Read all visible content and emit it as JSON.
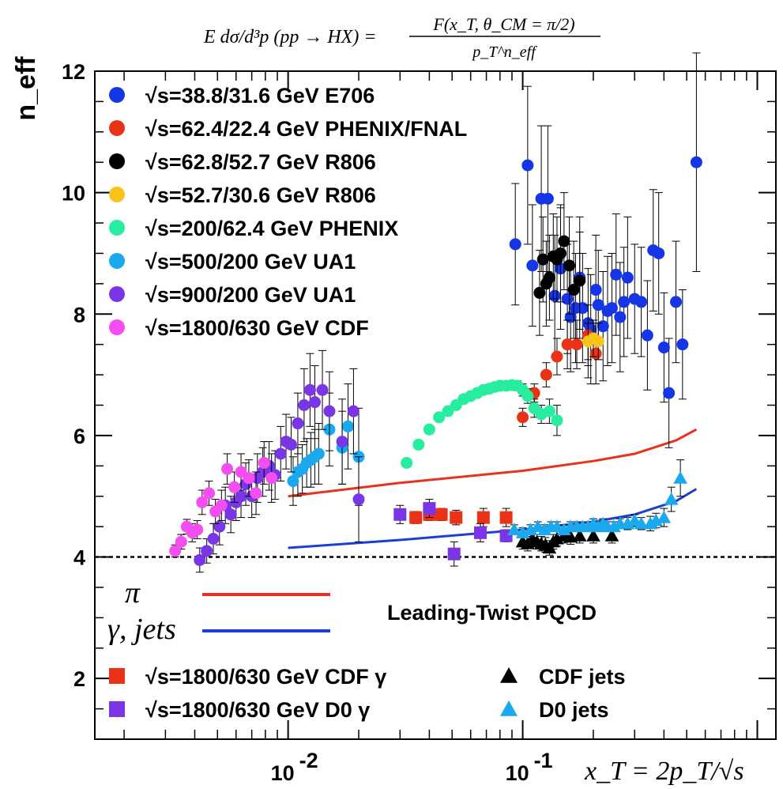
{
  "chart_data": {
    "type": "scatter",
    "title_formula": {
      "lhs": "E dσ/d³p (pp → HX) =",
      "numerator": "F(x_T, θ_CM = π/2)",
      "denominator": "p_T^n_eff"
    },
    "ylabel": "n_eff",
    "xlabel": "x_T = 2p_T/√s",
    "x_scale": "log",
    "xlim": [
      0.0015,
      1.2
    ],
    "ylim": [
      1,
      12
    ],
    "y_ticks": [
      "2",
      "4",
      "6",
      "8",
      "10",
      "12"
    ],
    "x_ticks": [
      {
        "base": "10",
        "exp": "-2",
        "value": 0.01
      },
      {
        "base": "10",
        "exp": "-1",
        "value": 0.1
      }
    ],
    "reference_line": {
      "y": 4,
      "style": "dashed"
    },
    "annotation": "Leading-Twist PQCD",
    "curve_labels": [
      {
        "label": "π",
        "color": "#e8321e"
      },
      {
        "label": "γ, jets",
        "color": "#1b3fd4"
      }
    ],
    "legend_top": [
      {
        "label": "√s=38.8/31.6 GeV E706",
        "color": "#1536e6",
        "marker": "circle"
      },
      {
        "label": "√s=62.4/22.4 GeV PHENIX/FNAL",
        "color": "#ea3316",
        "marker": "circle"
      },
      {
        "label": "√s=62.8/52.7 GeV R806",
        "color": "#000000",
        "marker": "circle"
      },
      {
        "label": "√s=52.7/30.6 GeV R806",
        "color": "#f8c41a",
        "marker": "circle"
      },
      {
        "label": "√s=200/62.4 GeV PHENIX",
        "color": "#27ee9e",
        "marker": "circle"
      },
      {
        "label": "√s=500/200 GeV UA1",
        "color": "#1aa8ee",
        "marker": "circle"
      },
      {
        "label": "√s=900/200 GeV UA1",
        "color": "#7a35e6",
        "marker": "circle"
      },
      {
        "label": "√s=1800/630 GeV CDF",
        "color": "#f44df0",
        "marker": "circle"
      }
    ],
    "legend_bottom": [
      {
        "label": "√s=1800/630 GeV CDF γ",
        "color": "#ea3316",
        "marker": "square"
      },
      {
        "label": "√s=1800/630 GeV D0 γ",
        "color": "#7a35e6",
        "marker": "square"
      },
      {
        "label": "CDF jets",
        "color": "#000000",
        "marker": "triangle"
      },
      {
        "label": "D0 jets",
        "color": "#1aa8ee",
        "marker": "triangle"
      }
    ],
    "curves": [
      {
        "name": "π",
        "color": "#e8321e",
        "x": [
          0.01,
          0.03,
          0.1,
          0.2,
          0.3,
          0.45,
          0.55
        ],
        "y": [
          5.0,
          5.22,
          5.42,
          5.58,
          5.7,
          5.92,
          6.1
        ]
      },
      {
        "name": "γ, jets",
        "color": "#1b3fd4",
        "x": [
          0.01,
          0.03,
          0.1,
          0.2,
          0.3,
          0.45,
          0.55
        ],
        "y": [
          4.15,
          4.28,
          4.45,
          4.58,
          4.7,
          4.92,
          5.12
        ]
      }
    ],
    "series": [
      {
        "name": "√s=38.8/31.6 GeV E706",
        "marker": "circle",
        "color": "#1536e6",
        "x": [
          0.093,
          0.105,
          0.11,
          0.12,
          0.128,
          0.137,
          0.145,
          0.155,
          0.16,
          0.168,
          0.175,
          0.18,
          0.19,
          0.195,
          0.205,
          0.21,
          0.22,
          0.23,
          0.24,
          0.25,
          0.26,
          0.27,
          0.28,
          0.3,
          0.32,
          0.34,
          0.36,
          0.38,
          0.4,
          0.42,
          0.45,
          0.48,
          0.55
        ],
        "y": [
          9.15,
          10.45,
          8.8,
          9.9,
          9.9,
          8.3,
          8.75,
          8.25,
          7.95,
          8.1,
          8.6,
          8.1,
          7.85,
          7.75,
          8.4,
          8.15,
          7.8,
          8.05,
          8.1,
          8.65,
          7.95,
          8.2,
          8.6,
          8.25,
          8.2,
          7.65,
          9.05,
          9.0,
          7.45,
          6.7,
          8.2,
          7.5,
          10.5
        ],
        "yerr": [
          1.0,
          1.3,
          1.0,
          1.2,
          1.2,
          1.0,
          1.0,
          0.9,
          0.9,
          0.9,
          1.0,
          0.9,
          0.9,
          0.9,
          0.9,
          0.9,
          0.9,
          0.9,
          0.9,
          1.0,
          0.9,
          0.9,
          1.0,
          0.9,
          0.9,
          0.9,
          1.0,
          1.0,
          0.9,
          0.9,
          1.0,
          0.9,
          1.8
        ]
      },
      {
        "name": "√s=62.4/22.4 GeV PHENIX/FNAL",
        "marker": "circle",
        "color": "#ea3316",
        "x": [
          0.1,
          0.112,
          0.126,
          0.14,
          0.155,
          0.17,
          0.19,
          0.205
        ],
        "y": [
          6.3,
          6.7,
          7.0,
          7.3,
          7.5,
          7.5,
          7.65,
          7.35
        ],
        "yerr": [
          0.15,
          0.15,
          0.2,
          0.3,
          0.4,
          0.4,
          0.5,
          0.5
        ]
      },
      {
        "name": "√s=62.8/52.7 GeV R806",
        "marker": "circle",
        "color": "#000000",
        "x": [
          0.118,
          0.122,
          0.126,
          0.13,
          0.135,
          0.14,
          0.145,
          0.15,
          0.158,
          0.165,
          0.175
        ],
        "y": [
          8.35,
          8.9,
          8.5,
          8.6,
          8.95,
          8.9,
          9.0,
          9.2,
          8.8,
          8.4,
          8.55
        ],
        "yerr": [
          0.7,
          0.7,
          0.7,
          0.7,
          0.7,
          0.7,
          0.8,
          0.8,
          0.8,
          0.8,
          0.8
        ]
      },
      {
        "name": "√s=52.7/30.6 GeV R806",
        "marker": "circle",
        "color": "#f8c41a",
        "x": [
          0.19,
          0.2,
          0.21
        ],
        "y": [
          7.55,
          7.6,
          7.55
        ],
        "yerr": [
          0.3,
          0.3,
          0.3
        ]
      },
      {
        "name": "√s=200/62.4 GeV PHENIX",
        "marker": "circle",
        "color": "#27ee9e",
        "x": [
          0.032,
          0.036,
          0.04,
          0.044,
          0.048,
          0.052,
          0.056,
          0.06,
          0.064,
          0.068,
          0.072,
          0.076,
          0.08,
          0.085,
          0.09,
          0.095,
          0.1,
          0.105,
          0.112,
          0.12,
          0.13,
          0.14
        ],
        "y": [
          5.55,
          5.85,
          6.1,
          6.3,
          6.4,
          6.5,
          6.6,
          6.65,
          6.7,
          6.75,
          6.77,
          6.8,
          6.82,
          6.82,
          6.83,
          6.82,
          6.75,
          6.65,
          6.45,
          6.35,
          6.4,
          6.25
        ],
        "yerr": [
          0.06,
          0.06,
          0.06,
          0.06,
          0.06,
          0.06,
          0.06,
          0.06,
          0.06,
          0.06,
          0.06,
          0.06,
          0.06,
          0.07,
          0.07,
          0.08,
          0.1,
          0.12,
          0.15,
          0.15,
          0.2,
          0.25
        ]
      },
      {
        "name": "√s=500/200 GeV UA1",
        "marker": "circle",
        "color": "#1aa8ee",
        "x": [
          0.0105,
          0.011,
          0.0115,
          0.012,
          0.0125,
          0.013,
          0.0135,
          0.015,
          0.017,
          0.018,
          0.02
        ],
        "y": [
          5.25,
          5.4,
          5.45,
          5.55,
          5.6,
          5.65,
          5.7,
          6.1,
          5.8,
          6.15,
          5.65
        ],
        "yerr": [
          0.4,
          0.4,
          0.4,
          0.4,
          0.45,
          0.45,
          0.5,
          0.6,
          0.6,
          0.7,
          0.8
        ]
      },
      {
        "name": "√s=900/200 GeV UA1",
        "marker": "circle",
        "color": "#7a35e6",
        "x": [
          0.0042,
          0.0045,
          0.0048,
          0.0051,
          0.0054,
          0.0057,
          0.006,
          0.0063,
          0.0066,
          0.007,
          0.0074,
          0.0078,
          0.0083,
          0.0088,
          0.0093,
          0.0098,
          0.0103,
          0.011,
          0.0117,
          0.0124,
          0.013,
          0.014,
          0.015,
          0.017,
          0.019,
          0.02
        ],
        "y": [
          3.95,
          4.1,
          4.3,
          4.5,
          4.85,
          4.7,
          4.9,
          5.0,
          5.2,
          5.0,
          5.3,
          5.4,
          5.5,
          5.35,
          5.7,
          5.9,
          5.85,
          6.2,
          6.5,
          6.75,
          6.55,
          6.75,
          6.4,
          5.9,
          6.4,
          4.95
        ],
        "yerr": [
          0.2,
          0.2,
          0.25,
          0.3,
          0.3,
          0.3,
          0.3,
          0.35,
          0.35,
          0.35,
          0.4,
          0.4,
          0.4,
          0.4,
          0.45,
          0.45,
          0.45,
          0.5,
          0.6,
          0.6,
          0.6,
          0.65,
          0.65,
          0.7,
          0.7,
          0.7
        ]
      },
      {
        "name": "√s=1800/630 GeV CDF",
        "marker": "circle",
        "color": "#f44df0",
        "x": [
          0.0033,
          0.0035,
          0.0037,
          0.0039,
          0.0041,
          0.0043,
          0.0046,
          0.0049,
          0.0052,
          0.0055,
          0.0059,
          0.0063,
          0.0068,
          0.0073,
          0.0079,
          0.0085
        ],
        "y": [
          4.1,
          4.25,
          4.5,
          4.4,
          4.45,
          4.9,
          5.05,
          4.75,
          4.85,
          5.45,
          5.15,
          5.4,
          5.3,
          5.05,
          5.55,
          5.3
        ],
        "yerr": [
          0.1,
          0.12,
          0.12,
          0.15,
          0.15,
          0.2,
          0.2,
          0.2,
          0.25,
          0.25,
          0.25,
          0.3,
          0.3,
          0.35,
          0.35,
          0.4
        ]
      },
      {
        "name": "√s=1800/630 GeV CDF γ",
        "marker": "square",
        "color": "#ea3316",
        "x": [
          0.035,
          0.04,
          0.045,
          0.052,
          0.068,
          0.085
        ],
        "y": [
          4.65,
          4.7,
          4.7,
          4.65,
          4.65,
          4.65
        ],
        "yerr": [
          0.1,
          0.1,
          0.1,
          0.12,
          0.15,
          0.15
        ]
      },
      {
        "name": "√s=1800/630 GeV D0 γ",
        "marker": "square",
        "color": "#7a35e6",
        "x": [
          0.03,
          0.04,
          0.051,
          0.066,
          0.085
        ],
        "y": [
          4.7,
          4.8,
          4.05,
          4.4,
          4.35
        ],
        "yerr": [
          0.15,
          0.15,
          0.2,
          0.15,
          0.1
        ]
      },
      {
        "name": "CDF jets",
        "marker": "triangle",
        "color": "#000000",
        "x": [
          0.1,
          0.105,
          0.11,
          0.115,
          0.12,
          0.125,
          0.13,
          0.135,
          0.14,
          0.15,
          0.16,
          0.175,
          0.2,
          0.24
        ],
        "y": [
          4.25,
          4.22,
          4.3,
          4.25,
          4.22,
          4.2,
          4.15,
          4.25,
          4.3,
          4.35,
          4.33,
          4.35,
          4.35,
          4.35
        ],
        "yerr": [
          0.12,
          0.12,
          0.12,
          0.12,
          0.12,
          0.12,
          0.12,
          0.12,
          0.12,
          0.12,
          0.12,
          0.12,
          0.12,
          0.12
        ]
      },
      {
        "name": "D0 jets",
        "marker": "triangle",
        "color": "#1aa8ee",
        "x": [
          0.092,
          0.1,
          0.108,
          0.116,
          0.124,
          0.132,
          0.14,
          0.15,
          0.16,
          0.17,
          0.18,
          0.19,
          0.2,
          0.21,
          0.22,
          0.23,
          0.245,
          0.26,
          0.28,
          0.3,
          0.32,
          0.35,
          0.37,
          0.4,
          0.43,
          0.47
        ],
        "y": [
          4.45,
          4.4,
          4.45,
          4.5,
          4.45,
          4.5,
          4.5,
          4.45,
          4.5,
          4.5,
          4.5,
          4.5,
          4.55,
          4.5,
          4.55,
          4.5,
          4.5,
          4.55,
          4.55,
          4.6,
          4.55,
          4.55,
          4.6,
          4.65,
          4.95,
          5.3
        ],
        "yerr": [
          0.08,
          0.08,
          0.08,
          0.08,
          0.08,
          0.08,
          0.08,
          0.08,
          0.08,
          0.08,
          0.08,
          0.08,
          0.08,
          0.08,
          0.08,
          0.08,
          0.08,
          0.08,
          0.1,
          0.1,
          0.1,
          0.12,
          0.12,
          0.15,
          0.2,
          0.3
        ]
      }
    ]
  }
}
